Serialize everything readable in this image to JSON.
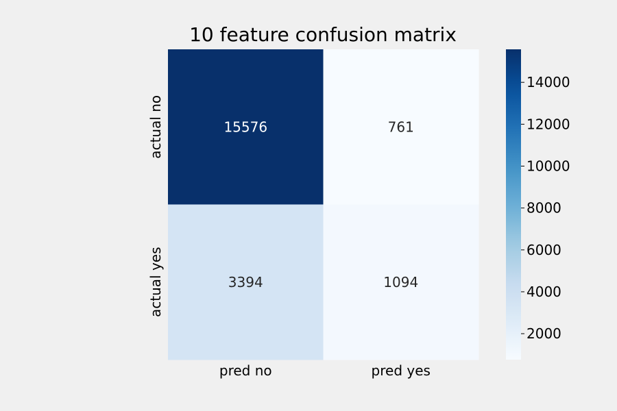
{
  "chart_data": {
    "type": "heatmap",
    "title": "10 feature confusion matrix",
    "x_categories": [
      "pred no",
      "pred yes"
    ],
    "y_categories": [
      "actual no",
      "actual yes"
    ],
    "values": [
      [
        15576,
        761
      ],
      [
        3394,
        1094
      ]
    ],
    "colorbar": {
      "min": 761,
      "max": 15576,
      "ticks": [
        2000,
        4000,
        6000,
        8000,
        10000,
        12000,
        14000
      ],
      "colormap": "Blues"
    },
    "colors": {
      "background": "#f0f0f0",
      "cmap_low": "#f7fbff",
      "cmap_high": "#08306b"
    }
  }
}
